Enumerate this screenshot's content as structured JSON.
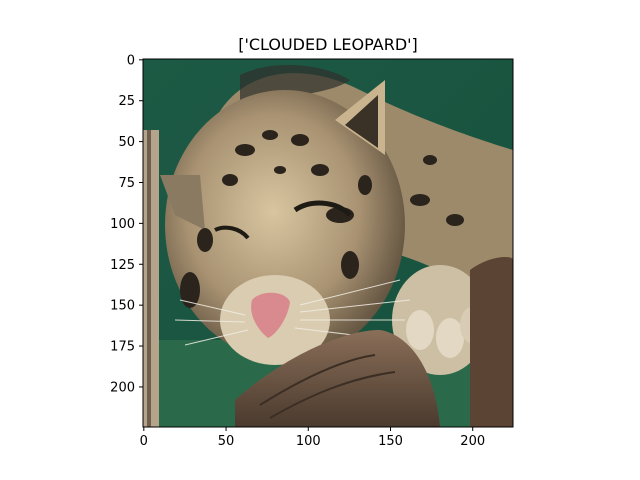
{
  "figure": {
    "title": "['CLOUDED LEOPARD']",
    "image_subject": "clouded leopard resting its head on a log",
    "x_ticks": [
      "0",
      "50",
      "100",
      "150",
      "200"
    ],
    "y_ticks": [
      "0",
      "25",
      "50",
      "75",
      "100",
      "125",
      "150",
      "175",
      "200"
    ],
    "image_extent": {
      "x": [
        0,
        224
      ],
      "y": [
        0,
        224
      ]
    },
    "colors": {
      "background": "#1f5c47",
      "fur_light": "#c9b48f",
      "fur_shadow": "#3a3226",
      "nose": "#d98a8e",
      "log": "#6b5443"
    }
  }
}
